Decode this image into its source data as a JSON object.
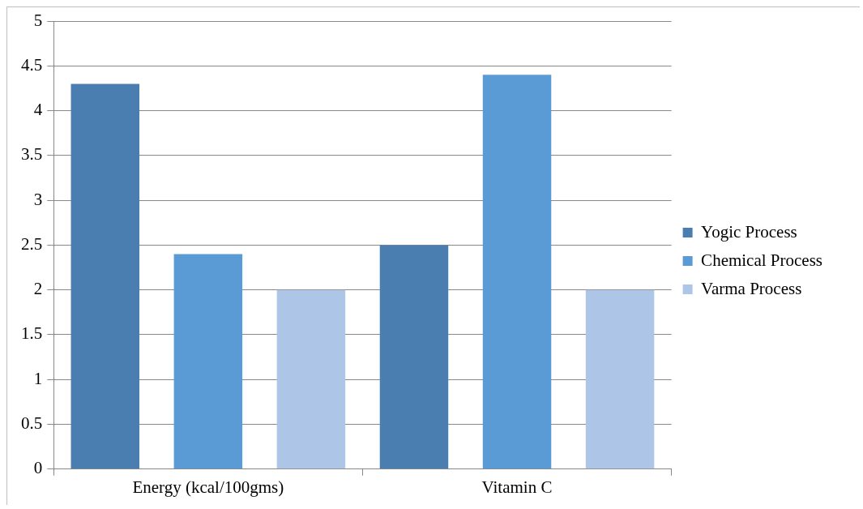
{
  "chart_data": {
    "type": "bar",
    "categories": [
      "Energy (kcal/100gms)",
      "Vitamin C"
    ],
    "series": [
      {
        "name": "Yogic Process",
        "color": "#4a7eb0",
        "values": [
          4.3,
          2.5
        ]
      },
      {
        "name": "Chemical Process",
        "color": "#5b9bd5",
        "values": [
          2.4,
          4.4
        ]
      },
      {
        "name": "Varma Process",
        "color": "#adc5e6",
        "values": [
          2.0,
          2.0
        ]
      }
    ],
    "ylim": [
      0,
      5
    ],
    "yticks": [
      0,
      0.5,
      1,
      1.5,
      2,
      2.5,
      3,
      3.5,
      4,
      4.5,
      5
    ],
    "grid": "y",
    "legend": "right"
  }
}
